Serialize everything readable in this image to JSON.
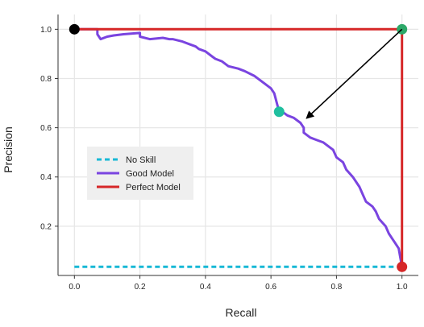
{
  "chart_data": {
    "type": "line",
    "xlabel": "Recall",
    "ylabel": "Precision",
    "xlim": [
      -0.05,
      1.05
    ],
    "ylim": [
      0.0,
      1.06
    ],
    "xticks": [
      0.0,
      0.2,
      0.4,
      0.6,
      0.8,
      1.0
    ],
    "xtick_labels": [
      "0.0",
      "0.2",
      "0.4",
      "0.6",
      "0.8",
      "1.0"
    ],
    "yticks": [
      0.2,
      0.4,
      0.6,
      0.8,
      1.0
    ],
    "ytick_labels": [
      "0.2",
      "0.4",
      "0.6",
      "0.8",
      "1.0"
    ],
    "grid": true,
    "legend_position": "center-left",
    "series": [
      {
        "name": "No Skill",
        "color": "#17b8d6",
        "style": "dashed",
        "x": [
          0.0,
          1.0
        ],
        "y": [
          0.035,
          0.035
        ]
      },
      {
        "name": "Good Model",
        "color": "#7a44e0",
        "style": "solid",
        "x": [
          0.0,
          0.07,
          0.07,
          0.08,
          0.1,
          0.12,
          0.15,
          0.2,
          0.2,
          0.23,
          0.27,
          0.29,
          0.3,
          0.33,
          0.35,
          0.37,
          0.38,
          0.4,
          0.42,
          0.43,
          0.45,
          0.47,
          0.5,
          0.52,
          0.55,
          0.58,
          0.6,
          0.61,
          0.625,
          0.64,
          0.65,
          0.67,
          0.69,
          0.7,
          0.7,
          0.72,
          0.74,
          0.76,
          0.78,
          0.79,
          0.8,
          0.82,
          0.83,
          0.85,
          0.87,
          0.88,
          0.89,
          0.91,
          0.92,
          0.93,
          0.95,
          0.96,
          0.97,
          0.98,
          0.99,
          1.0
        ],
        "y": [
          1.0,
          1.0,
          0.98,
          0.96,
          0.97,
          0.975,
          0.98,
          0.985,
          0.97,
          0.96,
          0.965,
          0.96,
          0.96,
          0.95,
          0.94,
          0.93,
          0.92,
          0.91,
          0.89,
          0.88,
          0.87,
          0.85,
          0.84,
          0.83,
          0.81,
          0.78,
          0.76,
          0.74,
          0.665,
          0.66,
          0.65,
          0.64,
          0.62,
          0.6,
          0.58,
          0.56,
          0.55,
          0.54,
          0.52,
          0.51,
          0.48,
          0.46,
          0.43,
          0.4,
          0.36,
          0.33,
          0.3,
          0.28,
          0.26,
          0.23,
          0.2,
          0.17,
          0.15,
          0.13,
          0.11,
          0.035
        ]
      },
      {
        "name": "Perfect Model",
        "color": "#d62728",
        "style": "solid",
        "x": [
          0.0,
          1.0,
          1.0
        ],
        "y": [
          1.0,
          1.0,
          0.035
        ]
      }
    ],
    "markers": [
      {
        "x": 0.0,
        "y": 1.0,
        "color": "#000000"
      },
      {
        "x": 1.0,
        "y": 1.0,
        "color": "#2ca868"
      },
      {
        "x": 0.625,
        "y": 0.665,
        "color": "#1fbf9f"
      },
      {
        "x": 1.0,
        "y": 0.035,
        "color": "#d62728"
      }
    ],
    "arrows": [
      {
        "from": [
          1.0,
          1.0
        ],
        "to": [
          0.71,
          0.64
        ],
        "color": "#000000"
      }
    ]
  }
}
